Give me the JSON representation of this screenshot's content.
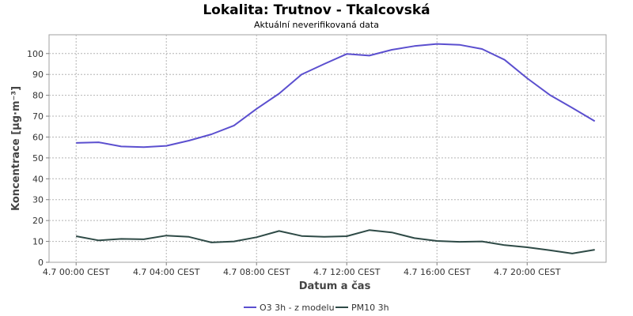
{
  "chart_data": {
    "type": "line",
    "title": "Lokalita: Trutnov - Tkalcovská",
    "subtitle": "Aktuální neverifikovaná data",
    "xlabel": "Datum a čas",
    "ylabel": "Koncentrace [µg·m⁻³]",
    "x_unit": "hours",
    "x": [
      0,
      1,
      2,
      3,
      4,
      5,
      6,
      7,
      8,
      9,
      10,
      11,
      12,
      13,
      14,
      15,
      16,
      17,
      18,
      19,
      20,
      21,
      22,
      23
    ],
    "x_ticks": [
      {
        "value": 0,
        "label": "4.7 00:00 CEST"
      },
      {
        "value": 4,
        "label": "4.7 04:00 CEST"
      },
      {
        "value": 8,
        "label": "4.7 08:00 CEST"
      },
      {
        "value": 12,
        "label": "4.7 12:00 CEST"
      },
      {
        "value": 16,
        "label": "4.7 16:00 CEST"
      },
      {
        "value": 20,
        "label": "4.7 20:00 CEST"
      }
    ],
    "xlim": [
      -1.2,
      23.5
    ],
    "ylim": [
      0,
      109
    ],
    "y_ticks": [
      0,
      10,
      20,
      30,
      40,
      50,
      60,
      70,
      80,
      90,
      100
    ],
    "grid": true,
    "legend_position": "bottom",
    "series": [
      {
        "name": "O3 3h - z modelu",
        "color": "#5b4fcf",
        "values": [
          57.2,
          57.5,
          55.5,
          55.2,
          55.8,
          58.3,
          61.3,
          65.5,
          73.5,
          80.8,
          90.0,
          95.0,
          99.8,
          99.0,
          101.8,
          103.6,
          104.6,
          104.2,
          102.2,
          97.0,
          88.2,
          80.2,
          74.0,
          67.6
        ]
      },
      {
        "name": "PM10 3h",
        "color": "#2e4a46",
        "values": [
          12.5,
          10.5,
          11.2,
          11.0,
          12.8,
          12.2,
          9.5,
          10.0,
          12.0,
          15.0,
          12.6,
          12.2,
          12.5,
          15.4,
          14.3,
          11.6,
          10.2,
          9.8,
          10.0,
          8.2,
          7.2,
          5.8,
          4.2,
          6.0
        ]
      }
    ]
  }
}
